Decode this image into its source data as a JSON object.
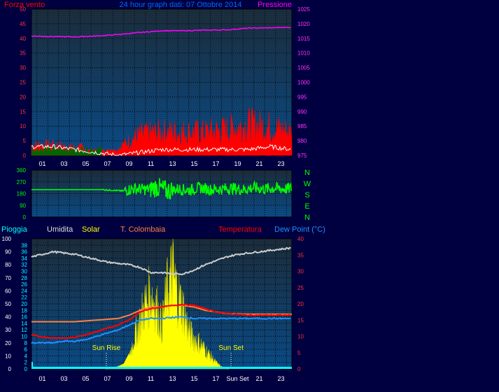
{
  "colors": {
    "background": "#000040",
    "plot_top": "#1b3046",
    "plot_bottom": "#0a4880",
    "wind": "#ff0000",
    "gust_white": "#ffffff",
    "wind_green": "#006600",
    "pressure": "#ff00ff",
    "direction": "#00ff00",
    "pioggia": "#00ffff",
    "umidita": "#cccccc",
    "solar": "#ffff00",
    "t_colombaia": "#ff8040",
    "temperatura": "#ff0000",
    "dew_point": "#1e90ff",
    "title": "#0066ff"
  },
  "header": {
    "left_label": "Forza vento",
    "title": "24 hour graph dati: 07 Ottobre 2014",
    "right_label": "Pressione"
  },
  "legend": {
    "pioggia": "Pioggia",
    "umidita": "Umidita",
    "solar": "Solar",
    "t_colombaia": "T. Colombaia",
    "temperatura": "Temperatura",
    "dew_point": "Dew Point (°C)"
  },
  "compass": [
    "N",
    "W",
    "S",
    "E",
    "N"
  ],
  "annotations": {
    "sun_rise": "Sun Rise",
    "sun_set": "Sun Set",
    "sun_set_tick": "Sun Set"
  },
  "chart_data": [
    {
      "type": "line",
      "name": "wind_pressure",
      "x_ticks": [
        "01",
        "03",
        "05",
        "07",
        "09",
        "11",
        "13",
        "15",
        "17",
        "19",
        "21",
        "23"
      ],
      "left_axis": {
        "label": "Forza vento",
        "ylim": [
          0,
          50
        ],
        "ticks": [
          0,
          5,
          10,
          15,
          20,
          25,
          30,
          35,
          40,
          45,
          50
        ]
      },
      "right_axis": {
        "label": "Pressione",
        "ylim": [
          975,
          1025
        ],
        "ticks": [
          975,
          980,
          985,
          990,
          995,
          1000,
          1005,
          1010,
          1015,
          1020,
          1025
        ]
      },
      "series": [
        {
          "name": "Pressione",
          "axis": "right",
          "x": [
            0,
            2,
            4,
            6,
            8,
            10,
            12,
            14,
            16,
            18,
            20,
            22,
            24
          ],
          "values": [
            1015.8,
            1015.6,
            1015.5,
            1015.8,
            1016.3,
            1017.0,
            1017.6,
            1017.6,
            1017.8,
            1017.9,
            1018.5,
            1018.6,
            1018.8
          ]
        },
        {
          "name": "Forza vento",
          "axis": "left",
          "x": [
            0,
            2,
            4,
            6,
            8,
            10,
            12,
            14,
            16,
            18,
            20,
            22,
            24
          ],
          "values": [
            4,
            4,
            3,
            3,
            3,
            8,
            9,
            9,
            9,
            10,
            12,
            11,
            9
          ]
        },
        {
          "name": "Raffica",
          "axis": "left",
          "x": [
            0,
            2,
            4,
            6,
            8,
            10,
            12,
            14,
            16,
            18,
            20,
            22,
            24
          ],
          "values": [
            3,
            3,
            2,
            1,
            0,
            1,
            2,
            2,
            2,
            2,
            2,
            3,
            2
          ]
        }
      ]
    },
    {
      "type": "line",
      "name": "wind_direction",
      "x_ticks": [
        "01",
        "03",
        "05",
        "07",
        "09",
        "11",
        "13",
        "15",
        "17",
        "19",
        "21",
        "23"
      ],
      "left_axis": {
        "ylim": [
          0,
          360
        ],
        "ticks": [
          0,
          90,
          180,
          270,
          360
        ]
      },
      "series": [
        {
          "name": "Direzione",
          "x": [
            0,
            4,
            6.5,
            8.5,
            9.5,
            10.5,
            11.5,
            12.5,
            13.5,
            14.5,
            15.5,
            16.5,
            17.5,
            18.5,
            19.5,
            20.5,
            21.5,
            22.5,
            23.5,
            24
          ],
          "values": [
            210,
            210,
            210,
            200,
            220,
            210,
            230,
            200,
            215,
            205,
            225,
            210,
            215,
            220,
            210,
            225,
            215,
            220,
            215,
            220
          ]
        }
      ]
    },
    {
      "type": "line",
      "name": "temperature_humidity_solar",
      "x_ticks": [
        "01",
        "03",
        "05",
        "07",
        "09",
        "11",
        "13",
        "15",
        "17",
        "Sun Set",
        "21",
        "23"
      ],
      "left_axis": {
        "label": "Umidita",
        "ylim": [
          0,
          100
        ],
        "ticks": [
          0,
          10,
          20,
          30,
          40,
          50,
          60,
          70,
          80,
          90,
          100
        ]
      },
      "inner_left_axis": {
        "label": "Pioggia",
        "ylim": [
          0,
          40
        ],
        "ticks": [
          0,
          2,
          4,
          6,
          8,
          10,
          12,
          14,
          16,
          18,
          20,
          22,
          24,
          26,
          28,
          30,
          32,
          34,
          36,
          38
        ]
      },
      "right_axis": {
        "label": "Temperatura",
        "ylim": [
          0,
          40
        ],
        "ticks": [
          0,
          5,
          10,
          15,
          20,
          25,
          30,
          35,
          40
        ]
      },
      "series": [
        {
          "name": "Umidita",
          "x": [
            0,
            1,
            2,
            3,
            4,
            5,
            6,
            7,
            8,
            9,
            10,
            11,
            12,
            13,
            14,
            15,
            16,
            17,
            18,
            19,
            20,
            21,
            22,
            23,
            24
          ],
          "values": [
            86,
            88,
            90,
            89,
            88,
            86,
            84,
            82,
            81,
            80,
            78,
            74,
            74,
            73,
            73,
            76,
            80,
            83,
            86,
            88,
            89,
            90,
            91,
            92,
            93
          ]
        },
        {
          "name": "T. Colombaia",
          "x": [
            0,
            2,
            4,
            6,
            8,
            9,
            10,
            11,
            12,
            13,
            14,
            15,
            16,
            17,
            18,
            20,
            22,
            24
          ],
          "values": [
            14.5,
            14.5,
            14.5,
            15,
            15.5,
            16.5,
            18,
            19,
            19,
            19.5,
            19.5,
            19,
            18,
            17.5,
            17,
            16.8,
            16.8,
            16.8
          ]
        },
        {
          "name": "Temperatura",
          "x": [
            0,
            1,
            2,
            3,
            4,
            5,
            6,
            7,
            8,
            9,
            10,
            11,
            12,
            13,
            14,
            15,
            16,
            17,
            18,
            20,
            22,
            24
          ],
          "values": [
            10.5,
            9.8,
            9.5,
            9.5,
            9.7,
            10.5,
            11.5,
            12.5,
            13.5,
            15,
            17.5,
            18.5,
            19,
            19.5,
            19.8,
            19.5,
            18.5,
            17.5,
            17,
            16.5,
            16.5,
            16.5
          ]
        },
        {
          "name": "Dew Point",
          "x": [
            0,
            1,
            2,
            3,
            4,
            5,
            6,
            7,
            8,
            9,
            10,
            11,
            12,
            13,
            14,
            15,
            16,
            18,
            20,
            22,
            24
          ],
          "values": [
            8,
            8,
            8,
            8.5,
            8.5,
            9,
            10,
            11,
            12,
            13.5,
            15,
            15.5,
            15.5,
            15.8,
            16,
            15.5,
            15.5,
            15.5,
            15.5,
            15.5,
            15.5
          ]
        },
        {
          "name": "Solar",
          "x": [
            0,
            7,
            7.5,
            8,
            8.5,
            9,
            9.5,
            10,
            10.5,
            11,
            11.5,
            12,
            12.5,
            13,
            13.5,
            14,
            14.5,
            15,
            15.5,
            16,
            16.5,
            17,
            17.5,
            18,
            24
          ],
          "values": [
            0,
            0,
            1,
            2,
            4,
            12,
            30,
            45,
            60,
            70,
            60,
            40,
            72,
            90,
            68,
            55,
            35,
            28,
            24,
            18,
            12,
            6,
            2,
            0,
            0
          ]
        },
        {
          "name": "Pioggia",
          "x": [
            0,
            24
          ],
          "values": [
            0.5,
            0.5
          ]
        }
      ],
      "markers": [
        {
          "label": "Sun Rise",
          "x": 6.9
        },
        {
          "label": "Sun Set",
          "x": 18.4
        }
      ]
    }
  ]
}
